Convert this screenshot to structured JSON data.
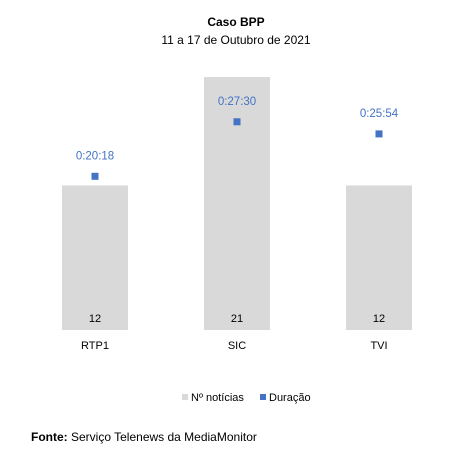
{
  "chart_data": {
    "type": "bar",
    "title": "Caso BPP",
    "subtitle": "11 a 17 de Outubro de 2021",
    "categories": [
      "RTP1",
      "SIC",
      "TVI"
    ],
    "series": [
      {
        "name": "Nº notícias",
        "type": "bar",
        "values": [
          12,
          21,
          12
        ],
        "color": "#d9d9d9"
      },
      {
        "name": "Duração",
        "type": "scatter",
        "values": [
          "0:20:18",
          "0:27:30",
          "0:25:54"
        ],
        "seconds": [
          1218,
          1650,
          1554
        ],
        "color": "#4472c4"
      }
    ],
    "ylim_counts": [
      0,
      22
    ],
    "ylim_duration_seconds": [
      0,
      2100
    ],
    "grid": false,
    "legend": "bottom"
  },
  "source": {
    "label": "Fonte:",
    "text": "Serviço Telenews da MediaMonitor"
  }
}
